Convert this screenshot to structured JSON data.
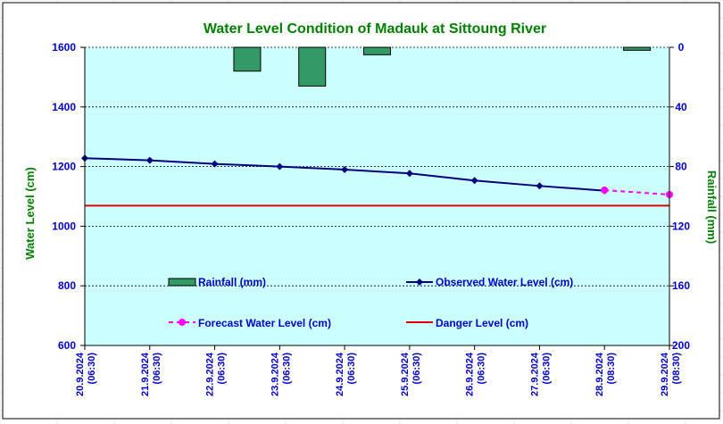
{
  "chart_data": {
    "type": "line",
    "title": "Water Level Condition of Madauk at Sittoung River",
    "ylabel": "Water Level (cm)",
    "y2label": "Rainfall (mm)",
    "ylim": [
      600,
      1600
    ],
    "y2lim": [
      0,
      200
    ],
    "y2_inverted": true,
    "yticks": [
      "600",
      "800",
      "1000",
      "1200",
      "1400",
      "1600"
    ],
    "y2ticks": [
      "0",
      "40",
      "80",
      "120",
      "160",
      "200"
    ],
    "categories": [
      [
        "20.9.2024",
        "(06:30)"
      ],
      [
        "21.9.2024",
        "(06:30)"
      ],
      [
        "22.9.2024",
        "(06:30)"
      ],
      [
        "23.9.2024",
        "(06:30)"
      ],
      [
        "24.9.2024",
        "(06:30)"
      ],
      [
        "25.9.2024",
        "(06:30)"
      ],
      [
        "26.9.2024",
        "(06:30)"
      ],
      [
        "27.9.2024",
        "(06:30)"
      ],
      [
        "28.9.2024",
        "(08:30)"
      ],
      [
        "29.9.2024",
        "(08:30)"
      ]
    ],
    "grid": true,
    "series": [
      {
        "name": "Rainfall (mm)",
        "kind": "bar",
        "axis": "right",
        "color": "#339966",
        "values": [
          0,
          0,
          16,
          26,
          5,
          0,
          0,
          0,
          2,
          0
        ]
      },
      {
        "name": "Observed Water Level (cm)",
        "kind": "line",
        "axis": "left",
        "color": "#000080",
        "marker": "diamond",
        "values": [
          1228,
          1221,
          1209,
          1200,
          1190,
          1177,
          1153,
          1135,
          1119,
          null
        ]
      },
      {
        "name": "Forecast Water Level (cm)",
        "kind": "line",
        "axis": "left",
        "color": "#ff00ff",
        "dashed": true,
        "marker": "circle",
        "values": [
          null,
          null,
          null,
          null,
          null,
          null,
          null,
          null,
          1121,
          1106
        ]
      },
      {
        "name": "Danger Level (cm)",
        "kind": "line",
        "axis": "left",
        "color": "#dd0000",
        "values": [
          1069,
          1069,
          1069,
          1069,
          1069,
          1069,
          1069,
          1069,
          1069,
          1069
        ]
      }
    ],
    "legend": "inside-lower",
    "colors": {
      "plot_background": "#ccffff",
      "title": "#008000",
      "axis_title": "#008000",
      "tick_label": "#0000cc",
      "legend_text": "#0000cc"
    }
  }
}
